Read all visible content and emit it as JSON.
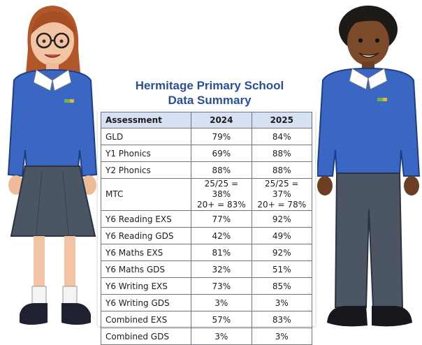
{
  "heading": {
    "line1": "Hermitage Primary School",
    "line2": "Data Summary"
  },
  "table": {
    "columns": [
      "Assessment",
      "2024",
      "2025"
    ],
    "rows": [
      {
        "name": "GLD",
        "y2024": "79%",
        "y2025": "84%"
      },
      {
        "name": "Y1 Phonics",
        "y2024": "69%",
        "y2025": "88%"
      },
      {
        "name": "Y2 Phonics",
        "y2024": "88%",
        "y2025": "88%"
      },
      {
        "name": "MTC",
        "y2024": [
          "25/25 = 38%",
          "20+ = 83%"
        ],
        "y2025": [
          "25/25 = 37%",
          "20+ = 78%"
        ]
      },
      {
        "name": "Y6 Reading EXS",
        "y2024": "77%",
        "y2025": "92%"
      },
      {
        "name": "Y6 Reading GDS",
        "y2024": "42%",
        "y2025": "49%"
      },
      {
        "name": "Y6 Maths EXS",
        "y2024": "81%",
        "y2025": "92%"
      },
      {
        "name": "Y6 Maths GDS",
        "y2024": "32%",
        "y2025": "51%"
      },
      {
        "name": "Y6 Writing EXS",
        "y2024": "73%",
        "y2025": "85%"
      },
      {
        "name": "Y6 Writing GDS",
        "y2024": "3%",
        "y2025": "3%"
      },
      {
        "name": "Combined EXS",
        "y2024": "57%",
        "y2025": "83%"
      },
      {
        "name": "Combined GDS",
        "y2024": "3%",
        "y2025": "3%"
      }
    ]
  },
  "colors": {
    "title": "#2a4f9a",
    "header_fill": "#d6e2f3",
    "jumper": "#3a67c4",
    "skirt": "#4a5566",
    "trousers": "#4b5563"
  },
  "illustrations": [
    "girl-illustration",
    "boy-illustration"
  ]
}
